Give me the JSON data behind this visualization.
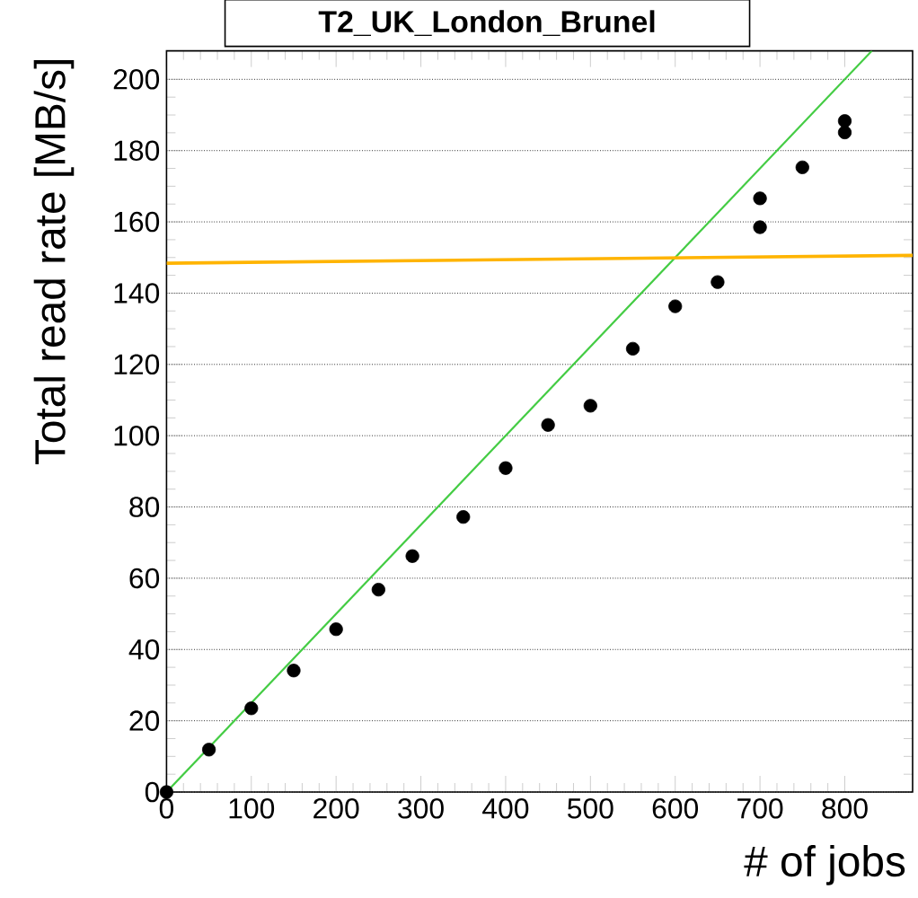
{
  "chart_data": {
    "type": "scatter",
    "title": "T2_UK_London_Brunel",
    "xlabel": "# of jobs",
    "ylabel": "Total read rate [MB/s]",
    "xlim": [
      0,
      880
    ],
    "xticks": [
      0,
      100,
      200,
      300,
      400,
      500,
      600,
      700,
      800
    ],
    "ylim": [
      0,
      208
    ],
    "yticks": [
      0,
      20,
      40,
      60,
      80,
      100,
      120,
      140,
      160,
      180,
      200
    ],
    "grid": "y",
    "series": [
      {
        "type": "line",
        "color": "#44cc44",
        "x": [
          0,
          832
        ],
        "values": [
          0,
          208
        ]
      },
      {
        "type": "line",
        "color": "#ffb400",
        "x": [
          0,
          880
        ],
        "values": [
          148.4,
          150.6
        ]
      },
      {
        "marker": "circle",
        "color": "#000000",
        "x": [
          0,
          50,
          100,
          150,
          200,
          250,
          290,
          350,
          400,
          450,
          500,
          550,
          600,
          650,
          700,
          700,
          750,
          800,
          800
        ],
        "values": [
          0,
          11.9,
          23.5,
          34.1,
          45.7,
          56.8,
          66.2,
          77.2,
          90.9,
          103.0,
          108.4,
          124.4,
          136.3,
          143.1,
          158.5,
          166.6,
          175.3,
          185.1,
          188.3
        ]
      }
    ]
  }
}
